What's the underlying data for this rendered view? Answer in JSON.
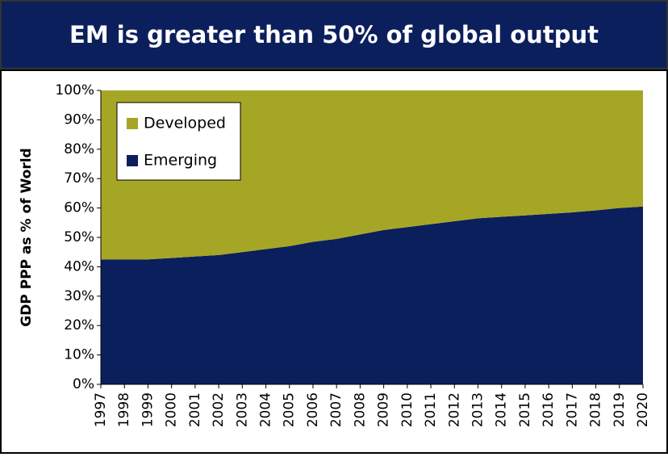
{
  "chart_data": {
    "type": "stacked_area",
    "title": "EM is greater than 50% of global output",
    "y_label": "GDP PPP as % of World",
    "categories": [
      "1997",
      "1998",
      "1999",
      "2000",
      "2001",
      "2002",
      "2003",
      "2004",
      "2005",
      "2006",
      "2007",
      "2008",
      "2009",
      "2010",
      "2011",
      "2012",
      "2013",
      "2014",
      "2015",
      "2016",
      "2017",
      "2018",
      "2019",
      "2020"
    ],
    "series": [
      {
        "name": "Emerging",
        "color": "#0b1f5c",
        "values": [
          42.5,
          42.5,
          42.5,
          43,
          43.5,
          44,
          45,
          46,
          47,
          48.5,
          49.5,
          51,
          52.5,
          53.5,
          54.5,
          55.5,
          56.5,
          57,
          57.5,
          58,
          58.5,
          59.2,
          60,
          60.5
        ]
      },
      {
        "name": "Developed",
        "color": "#a6a626",
        "values": [
          57.5,
          57.5,
          57.5,
          57,
          56.5,
          56,
          55,
          54,
          53,
          51.5,
          50.5,
          49,
          47.5,
          46.5,
          45.5,
          44.5,
          43.5,
          43,
          42.5,
          42,
          41.5,
          40.8,
          40,
          39.5
        ]
      }
    ],
    "ylim": [
      0,
      100
    ],
    "yticks": [
      {
        "value": 0,
        "label": "0%"
      },
      {
        "value": 10,
        "label": "10%"
      },
      {
        "value": 20,
        "label": "20%"
      },
      {
        "value": 30,
        "label": "30%"
      },
      {
        "value": 40,
        "label": "40%"
      },
      {
        "value": 50,
        "label": "50%"
      },
      {
        "value": 60,
        "label": "60%"
      },
      {
        "value": 70,
        "label": "70%"
      },
      {
        "value": 80,
        "label": "80%"
      },
      {
        "value": 90,
        "label": "90%"
      },
      {
        "value": 100,
        "label": "100%"
      }
    ],
    "legend": "upper left"
  }
}
